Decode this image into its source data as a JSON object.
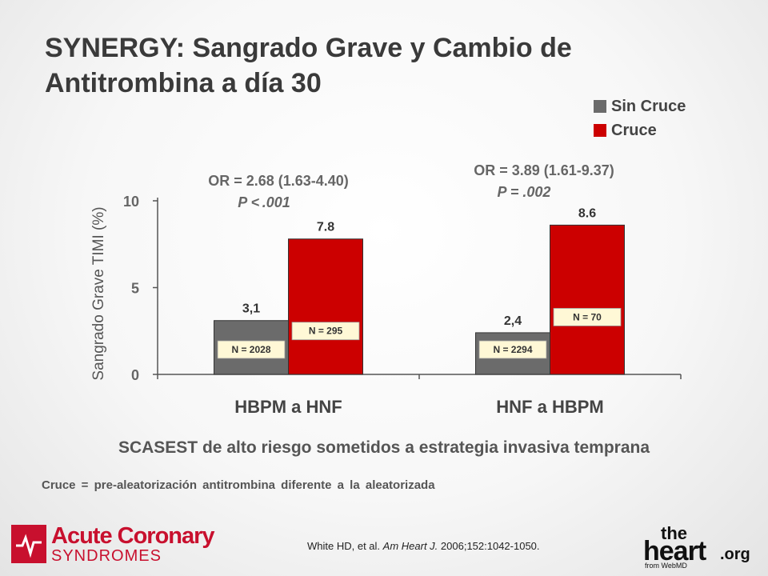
{
  "title": "SYNERGY: Sangrado Grave y Cambio de Antitrombina a día 30",
  "legend": [
    {
      "label": "Sin Cruce",
      "color": "#6b6b6b"
    },
    {
      "label": "Cruce",
      "color": "#cc0000"
    }
  ],
  "annotations": [
    {
      "or": "OR = 2.68 (1.63-4.40)",
      "p": "P < .001"
    },
    {
      "or": "OR = 3.89 (1.61-9.37)",
      "p": "P = .002"
    }
  ],
  "chart_data": {
    "type": "bar",
    "categories": [
      "HBPM a HNF",
      "HNF a HBPM"
    ],
    "series": [
      {
        "name": "Sin Cruce",
        "color": "#6b6b6b",
        "values": [
          3.1,
          2.4
        ],
        "labels": [
          "3,1",
          "2,4"
        ],
        "n": [
          "N = 2028",
          "N = 2294"
        ]
      },
      {
        "name": "Cruce",
        "color": "#cc0000",
        "values": [
          7.8,
          8.6
        ],
        "labels": [
          "7.8",
          "8.6"
        ],
        "n": [
          "N = 295",
          "N = 70"
        ]
      }
    ],
    "ylabel": "Sangrado Grave TIMI (%)",
    "ylim": [
      0,
      10
    ],
    "yticks": [
      0,
      5,
      10
    ],
    "grid": false
  },
  "subtitle": "SCASEST de alto riesgo sometidos a estrategia invasiva temprana",
  "footnote": "Cruce = pre-aleatorización antitrombina diferente a la aleatorizada",
  "citation": {
    "authors": "White HD, et al.",
    "journal": "Am Heart J.",
    "rest": "2006;152:1042-1050."
  },
  "logos": {
    "left": {
      "line1": "Acute Coronary",
      "line2": "SYNDROMES"
    },
    "right": {
      "the": "the",
      "heart": "heart",
      "org": ".org",
      "from": "from WebMD"
    }
  }
}
